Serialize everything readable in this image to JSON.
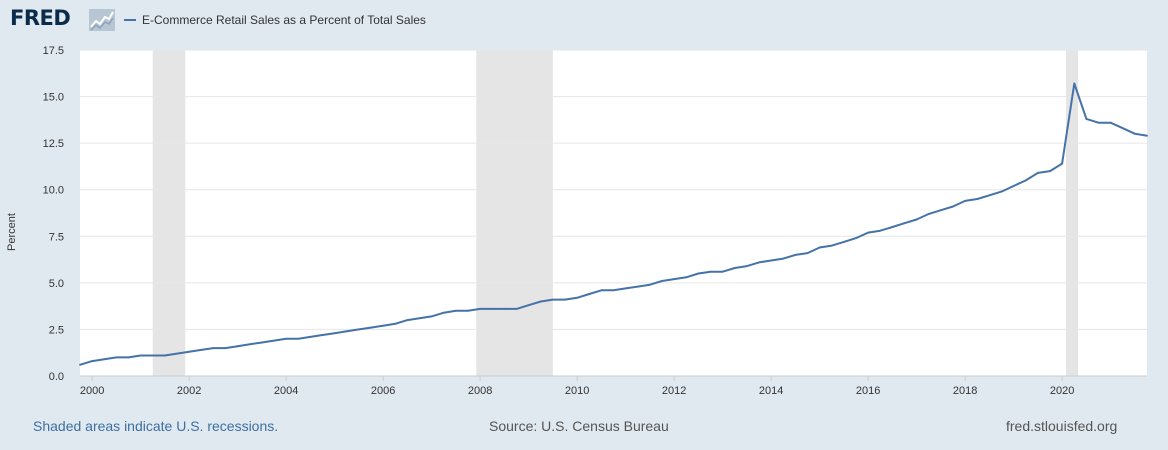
{
  "header": {
    "logo_text": "FRED",
    "logo_icon": "line-chart-icon",
    "legend_label": "E-Commerce Retail Sales as a Percent of Total Sales"
  },
  "footer": {
    "recession_note": "Shaded areas indicate U.S. recessions.",
    "source": "Source: U.S. Census Bureau",
    "site": "fred.stlouisfed.org"
  },
  "colors": {
    "background": "#e1e9f0",
    "plot_background": "#ffffff",
    "series": "#4572a7",
    "recession": "#e5e5e5",
    "gridline": "#e6e6e6"
  },
  "chart_data": {
    "type": "line",
    "title": "",
    "xlabel": "",
    "ylabel": "Percent",
    "xlim": [
      1999.75,
      2021.75
    ],
    "ylim": [
      0,
      17.5
    ],
    "yticks": [
      "0.0",
      "2.5",
      "5.0",
      "7.5",
      "10.0",
      "12.5",
      "15.0",
      "17.5"
    ],
    "xticks": [
      "2000",
      "2002",
      "2004",
      "2006",
      "2008",
      "2010",
      "2012",
      "2014",
      "2016",
      "2018",
      "2020"
    ],
    "grid": true,
    "legend_position": "top-left",
    "recessions": [
      {
        "start": 2001.25,
        "end": 2001.92
      },
      {
        "start": 2007.92,
        "end": 2009.5
      },
      {
        "start": 2020.08,
        "end": 2020.33
      }
    ],
    "series": [
      {
        "name": "E-Commerce Retail Sales as a Percent of Total Sales",
        "x": [
          1999.75,
          2000.0,
          2000.25,
          2000.5,
          2000.75,
          2001.0,
          2001.25,
          2001.5,
          2001.75,
          2002.0,
          2002.25,
          2002.5,
          2002.75,
          2003.0,
          2003.25,
          2003.5,
          2003.75,
          2004.0,
          2004.25,
          2004.5,
          2004.75,
          2005.0,
          2005.25,
          2005.5,
          2005.75,
          2006.0,
          2006.25,
          2006.5,
          2006.75,
          2007.0,
          2007.25,
          2007.5,
          2007.75,
          2008.0,
          2008.25,
          2008.5,
          2008.75,
          2009.0,
          2009.25,
          2009.5,
          2009.75,
          2010.0,
          2010.25,
          2010.5,
          2010.75,
          2011.0,
          2011.25,
          2011.5,
          2011.75,
          2012.0,
          2012.25,
          2012.5,
          2012.75,
          2013.0,
          2013.25,
          2013.5,
          2013.75,
          2014.0,
          2014.25,
          2014.5,
          2014.75,
          2015.0,
          2015.25,
          2015.5,
          2015.75,
          2016.0,
          2016.25,
          2016.5,
          2016.75,
          2017.0,
          2017.25,
          2017.5,
          2017.75,
          2018.0,
          2018.25,
          2018.5,
          2018.75,
          2019.0,
          2019.25,
          2019.5,
          2019.75,
          2020.0,
          2020.25,
          2020.5,
          2020.75,
          2021.0,
          2021.25,
          2021.5,
          2021.75
        ],
        "y": [
          0.6,
          0.8,
          0.9,
          1.0,
          1.0,
          1.1,
          1.1,
          1.1,
          1.2,
          1.3,
          1.4,
          1.5,
          1.5,
          1.6,
          1.7,
          1.8,
          1.9,
          2.0,
          2.0,
          2.1,
          2.2,
          2.3,
          2.4,
          2.5,
          2.6,
          2.7,
          2.8,
          3.0,
          3.1,
          3.2,
          3.4,
          3.5,
          3.5,
          3.6,
          3.6,
          3.6,
          3.6,
          3.8,
          4.0,
          4.1,
          4.1,
          4.2,
          4.4,
          4.6,
          4.6,
          4.7,
          4.8,
          4.9,
          5.1,
          5.2,
          5.3,
          5.5,
          5.6,
          5.6,
          5.8,
          5.9,
          6.1,
          6.2,
          6.3,
          6.5,
          6.6,
          6.9,
          7.0,
          7.2,
          7.4,
          7.7,
          7.8,
          8.0,
          8.2,
          8.4,
          8.7,
          8.9,
          9.1,
          9.4,
          9.5,
          9.7,
          9.9,
          10.2,
          10.5,
          10.9,
          11.0,
          11.4,
          15.7,
          13.8,
          13.6,
          13.6,
          13.3,
          13.0,
          12.9
        ]
      }
    ]
  }
}
